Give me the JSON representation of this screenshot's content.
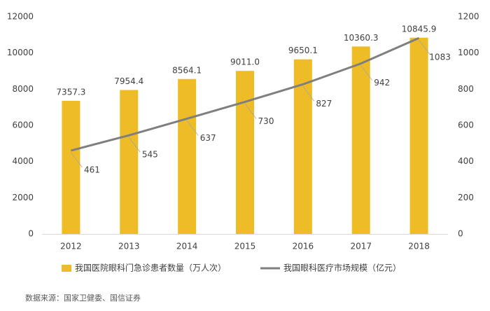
{
  "chart_data": {
    "type": "bar-line",
    "categories": [
      "2012",
      "2013",
      "2014",
      "2015",
      "2016",
      "2017",
      "2018"
    ],
    "series": [
      {
        "name": "我国医院眼科门急诊患者数量（万人次）",
        "type": "bar",
        "color": "#eebc26",
        "values": [
          7357.3,
          7954.4,
          8564.1,
          9011.0,
          9650.1,
          10360.3,
          10845.9
        ],
        "value_labels": [
          "7357.3",
          "7954.4",
          "8564.1",
          "9011.0",
          "9650.1",
          "10360.3",
          "10845.9"
        ]
      },
      {
        "name": "我国眼科医疗市场规模（亿元）",
        "type": "line",
        "axis": "y2",
        "color": "#7f7f7f",
        "values": [
          461,
          545,
          637,
          730,
          827,
          942,
          1083
        ]
      }
    ],
    "ylim": [
      0,
      12000
    ],
    "yticks": [
      0,
      2000,
      4000,
      6000,
      8000,
      10000,
      12000
    ],
    "y2lim": [
      0,
      1200
    ],
    "y2ticks": [
      0,
      200,
      400,
      600,
      800,
      1000,
      1200
    ],
    "grid": false,
    "legend": "bottom",
    "source": "数据来源：国家卫健委、国信证券"
  }
}
